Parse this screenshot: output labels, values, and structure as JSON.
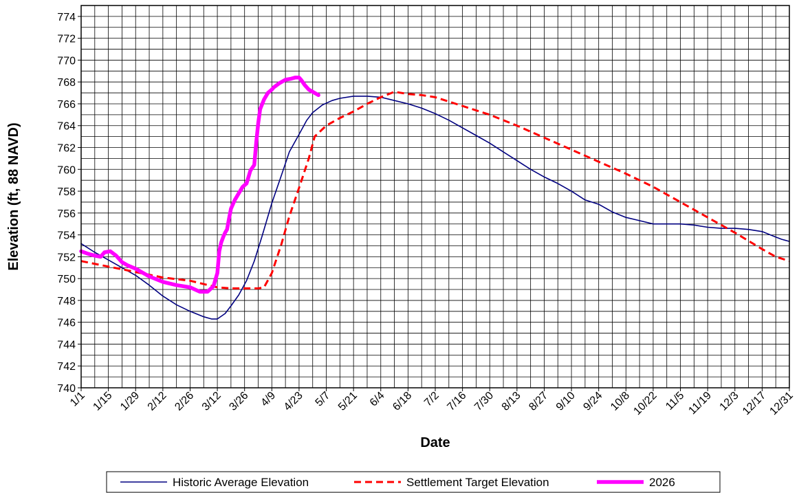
{
  "chart_data": {
    "type": "line",
    "title": "",
    "xlabel": "Date",
    "ylabel": "Elevation (ft, 88 NAVD)",
    "ylim": [
      740,
      775
    ],
    "y_ticks": [
      740,
      742,
      744,
      746,
      748,
      750,
      752,
      754,
      756,
      758,
      760,
      762,
      764,
      766,
      768,
      770,
      772,
      774
    ],
    "x_range_days": [
      1,
      365
    ],
    "x_tick_labels": [
      "1/1",
      "1/15",
      "1/29",
      "2/12",
      "2/26",
      "3/12",
      "3/26",
      "4/9",
      "4/23",
      "5/7",
      "5/21",
      "6/4",
      "6/18",
      "7/2",
      "7/16",
      "7/30",
      "8/13",
      "8/27",
      "9/10",
      "9/24",
      "10/8",
      "10/22",
      "11/5",
      "11/19",
      "12/3",
      "12/17",
      "12/31"
    ],
    "x_tick_days": [
      1,
      15,
      29,
      43,
      57,
      71,
      85,
      99,
      113,
      127,
      141,
      155,
      169,
      183,
      197,
      211,
      225,
      239,
      253,
      267,
      281,
      295,
      309,
      323,
      337,
      351,
      365
    ],
    "grid": true,
    "legend_position": "bottom",
    "series": [
      {
        "name": "Historic Average Elevation",
        "color": "#000080",
        "style": "solid",
        "x": [
          1,
          8,
          15,
          22,
          29,
          36,
          43,
          50,
          57,
          64,
          68,
          71,
          75,
          78,
          82,
          86,
          90,
          94,
          99,
          104,
          108,
          113,
          117,
          120,
          125,
          130,
          134,
          141,
          148,
          155,
          162,
          169,
          176,
          183,
          190,
          197,
          204,
          211,
          218,
          225,
          232,
          239,
          246,
          253,
          260,
          267,
          274,
          281,
          288,
          295,
          302,
          309,
          316,
          323,
          330,
          337,
          344,
          351,
          358,
          361,
          365
        ],
        "y": [
          753.2,
          752.4,
          751.7,
          751.0,
          750.3,
          749.4,
          748.4,
          747.6,
          747.0,
          746.5,
          746.3,
          746.3,
          746.8,
          747.5,
          748.5,
          749.8,
          751.6,
          753.9,
          756.9,
          759.5,
          761.6,
          763.2,
          764.5,
          765.2,
          765.9,
          766.3,
          766.5,
          766.7,
          766.7,
          766.6,
          766.3,
          766.0,
          765.6,
          765.1,
          764.5,
          763.8,
          763.1,
          762.4,
          761.6,
          760.8,
          760.0,
          759.3,
          758.7,
          758.0,
          757.2,
          756.8,
          756.1,
          755.6,
          755.3,
          755.0,
          755.0,
          755.0,
          754.9,
          754.7,
          754.6,
          754.6,
          754.5,
          754.3,
          753.8,
          753.6,
          753.4
        ]
      },
      {
        "name": "Settlement Target Elevation",
        "color": "#ff0000",
        "style": "dashed",
        "x": [
          1,
          15,
          29,
          43,
          57,
          71,
          78,
          85,
          92,
          95,
          99,
          104,
          108,
          113,
          118,
          121,
          127,
          134,
          141,
          148,
          155,
          162,
          169,
          176,
          183,
          197,
          211,
          225,
          239,
          253,
          267,
          281,
          295,
          309,
          323,
          337,
          351,
          358,
          365
        ],
        "y": [
          751.6,
          751.1,
          750.6,
          750.1,
          749.8,
          749.2,
          749.1,
          749.1,
          749.1,
          749.2,
          750.5,
          753.2,
          755.7,
          758.3,
          761.0,
          763.0,
          764.0,
          764.7,
          765.3,
          766.0,
          766.6,
          767.1,
          766.9,
          766.8,
          766.6,
          765.8,
          765.0,
          764.0,
          762.9,
          761.8,
          760.7,
          759.6,
          758.4,
          757.0,
          755.6,
          754.2,
          752.7,
          752.0,
          751.6
        ]
      },
      {
        "name": "2026",
        "color": "#ff00ff",
        "style": "solid-thick",
        "x": [
          1,
          4,
          8,
          11,
          13,
          16,
          19,
          22,
          25,
          29,
          36,
          43,
          50,
          57,
          62,
          66,
          69,
          71,
          72,
          73,
          74,
          75,
          76,
          77,
          78,
          80,
          82,
          84,
          86,
          87,
          88,
          90,
          91,
          92,
          93,
          95,
          97,
          99,
          100,
          103,
          106,
          109,
          111,
          113,
          114,
          116,
          118,
          121,
          123
        ],
        "y": [
          752.5,
          752.3,
          752.1,
          752.0,
          752.4,
          752.5,
          752.1,
          751.5,
          751.2,
          750.9,
          750.2,
          749.7,
          749.4,
          749.2,
          748.8,
          748.8,
          749.3,
          750.5,
          752.5,
          753.3,
          753.8,
          754.2,
          754.5,
          755.5,
          756.4,
          757.2,
          757.8,
          758.4,
          758.7,
          759.3,
          759.9,
          760.4,
          762.5,
          764.2,
          765.5,
          766.4,
          767.0,
          767.3,
          767.5,
          767.9,
          768.2,
          768.3,
          768.4,
          768.4,
          768.2,
          767.7,
          767.3,
          767.0,
          766.8
        ]
      }
    ]
  }
}
